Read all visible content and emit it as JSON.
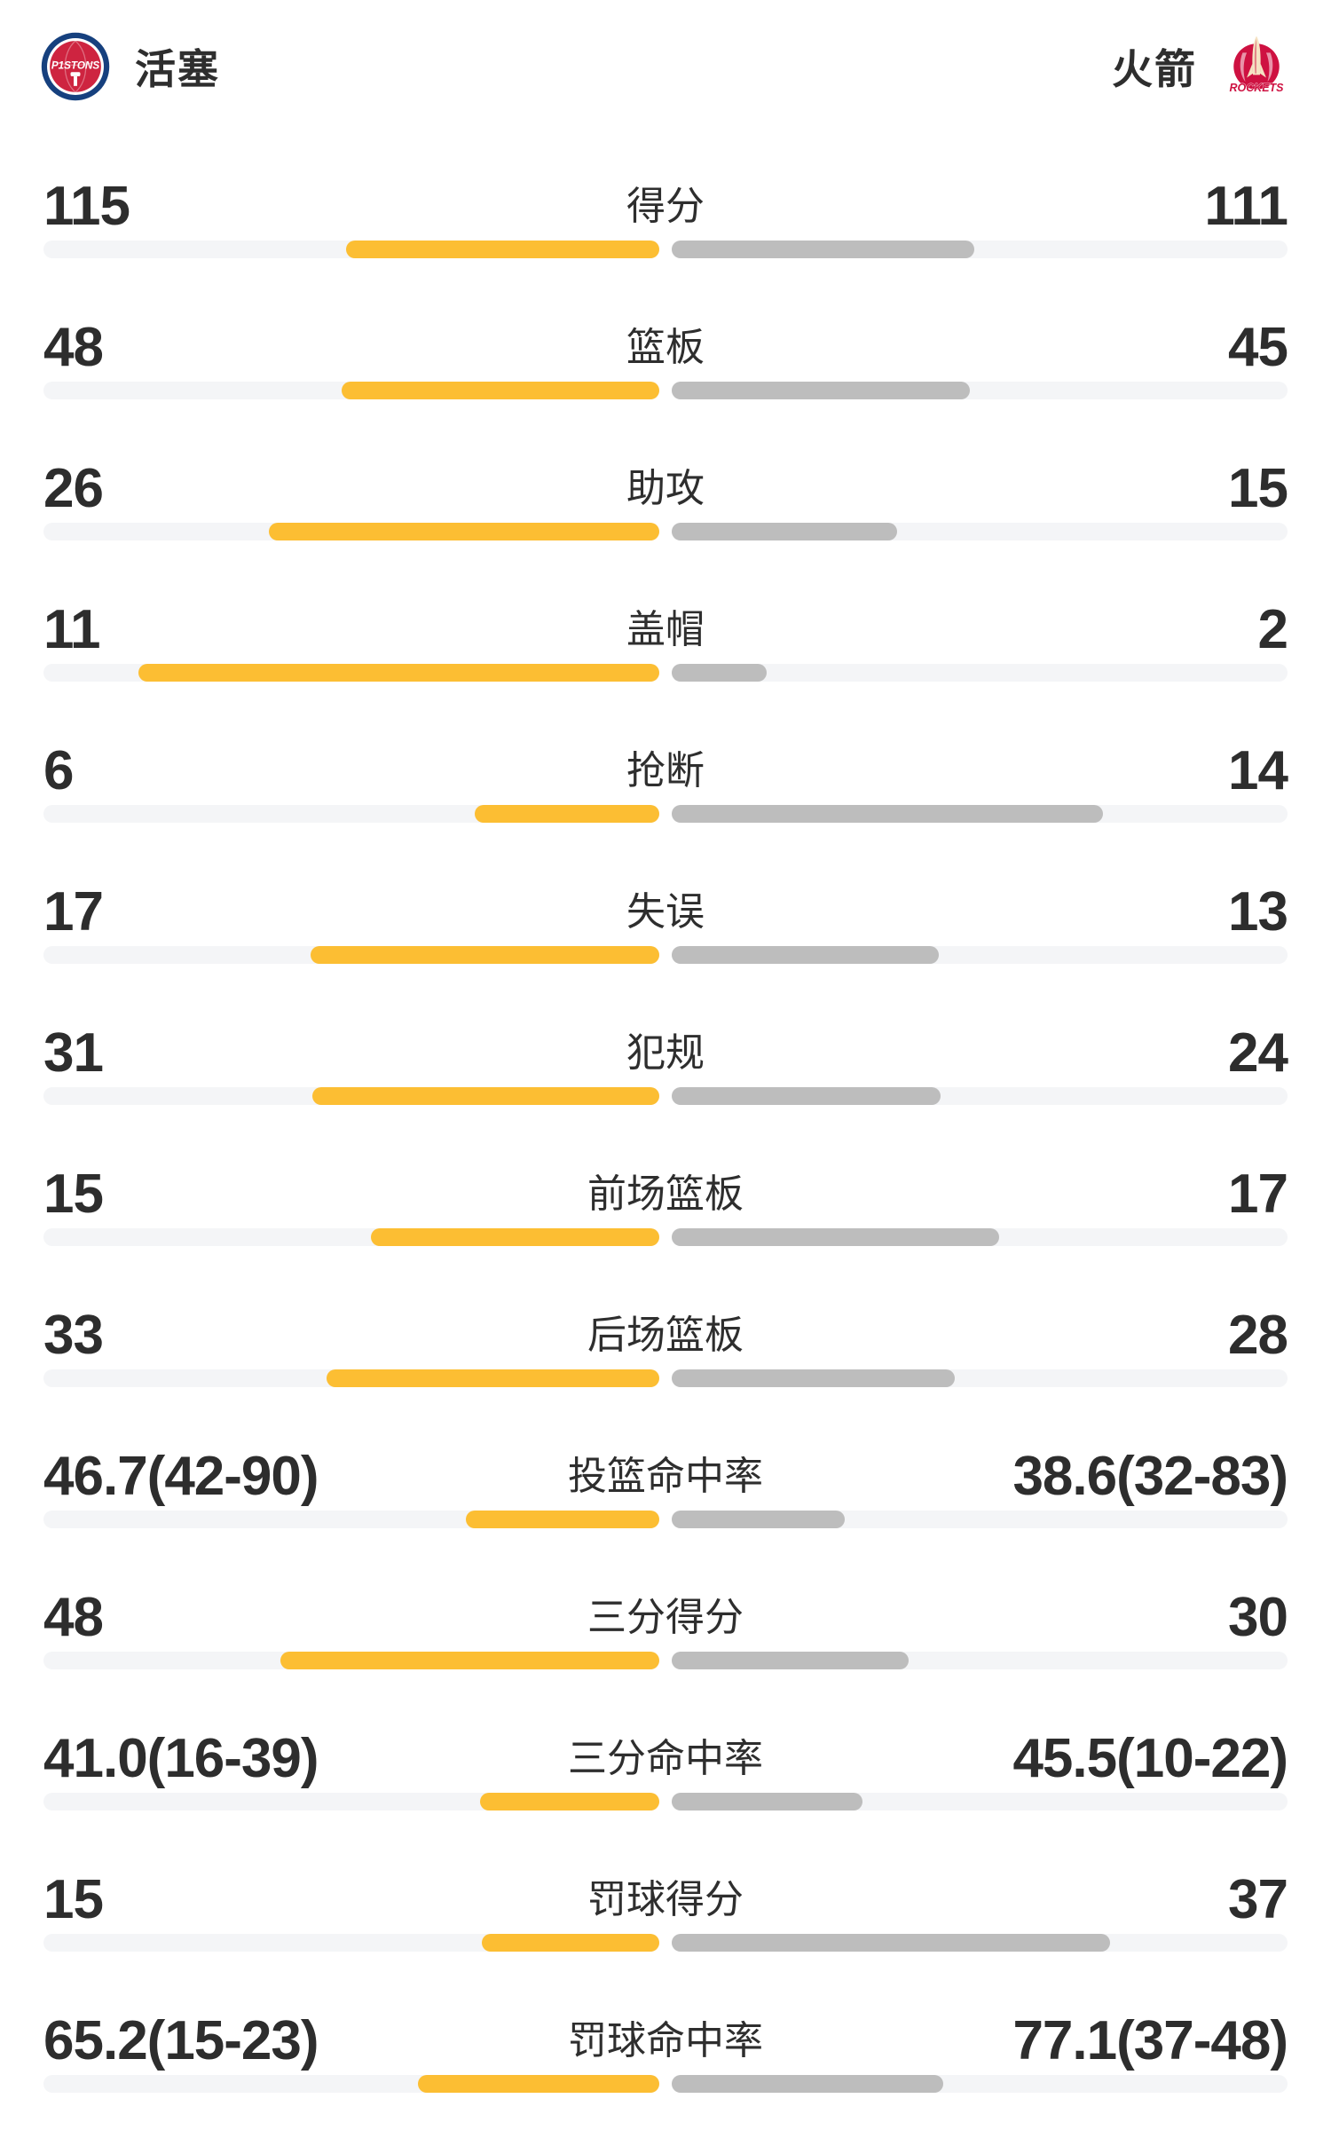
{
  "header": {
    "home": {
      "name": "活塞",
      "logo_icon": "pistons-logo",
      "logo_text": "PISTONS"
    },
    "away": {
      "name": "火箭",
      "logo_icon": "rockets-logo",
      "logo_text": "ROCKETS"
    }
  },
  "colors": {
    "background": "#ffffff",
    "home_bar": "#fcbe33",
    "away_bar": "#bdbdbd",
    "bar_track": "#f4f5f7",
    "text_main": "#2e2e2e",
    "text_number": "#2d2d2d",
    "pistons_navy": "#16407e",
    "pistons_red": "#ce2440",
    "pistons_white": "#ffffff",
    "rockets_red": "#ce1141",
    "rockets_cream": "#f5e3c3"
  },
  "chart_data": {
    "type": "bar",
    "layout": "centered-diverging-comparison",
    "legend": {
      "left_team": "活塞",
      "right_team": "火箭"
    },
    "rows": [
      {
        "label": "得分",
        "left": "115",
        "right": "111",
        "left_value": 115,
        "right_value": 111,
        "kind": "count"
      },
      {
        "label": "篮板",
        "left": "48",
        "right": "45",
        "left_value": 48,
        "right_value": 45,
        "kind": "count"
      },
      {
        "label": "助攻",
        "left": "26",
        "right": "15",
        "left_value": 26,
        "right_value": 15,
        "kind": "count"
      },
      {
        "label": "盖帽",
        "left": "11",
        "right": "2",
        "left_value": 11,
        "right_value": 2,
        "kind": "count"
      },
      {
        "label": "抢断",
        "left": "6",
        "right": "14",
        "left_value": 6,
        "right_value": 14,
        "kind": "count"
      },
      {
        "label": "失误",
        "left": "17",
        "right": "13",
        "left_value": 17,
        "right_value": 13,
        "kind": "count"
      },
      {
        "label": "犯规",
        "left": "31",
        "right": "24",
        "left_value": 31,
        "right_value": 24,
        "kind": "count"
      },
      {
        "label": "前场篮板",
        "left": "15",
        "right": "17",
        "left_value": 15,
        "right_value": 17,
        "kind": "count"
      },
      {
        "label": "后场篮板",
        "left": "33",
        "right": "28",
        "left_value": 33,
        "right_value": 28,
        "kind": "count"
      },
      {
        "label": "投篮命中率",
        "left": "46.7(42-90)",
        "right": "38.6(32-83)",
        "left_value": 46.7,
        "right_value": 38.6,
        "kind": "rate"
      },
      {
        "label": "三分得分",
        "left": "48",
        "right": "30",
        "left_value": 48,
        "right_value": 30,
        "kind": "count"
      },
      {
        "label": "三分命中率",
        "left": "41.0(16-39)",
        "right": "45.5(10-22)",
        "left_value": 41.0,
        "right_value": 45.5,
        "kind": "rate"
      },
      {
        "label": "罚球得分",
        "left": "15",
        "right": "37",
        "left_value": 15,
        "right_value": 37,
        "kind": "count"
      },
      {
        "label": "罚球命中率",
        "left": "65.2(15-23)",
        "right": "77.1(37-48)",
        "left_value": 65.2,
        "right_value": 77.1,
        "kind": "rate"
      }
    ]
  }
}
